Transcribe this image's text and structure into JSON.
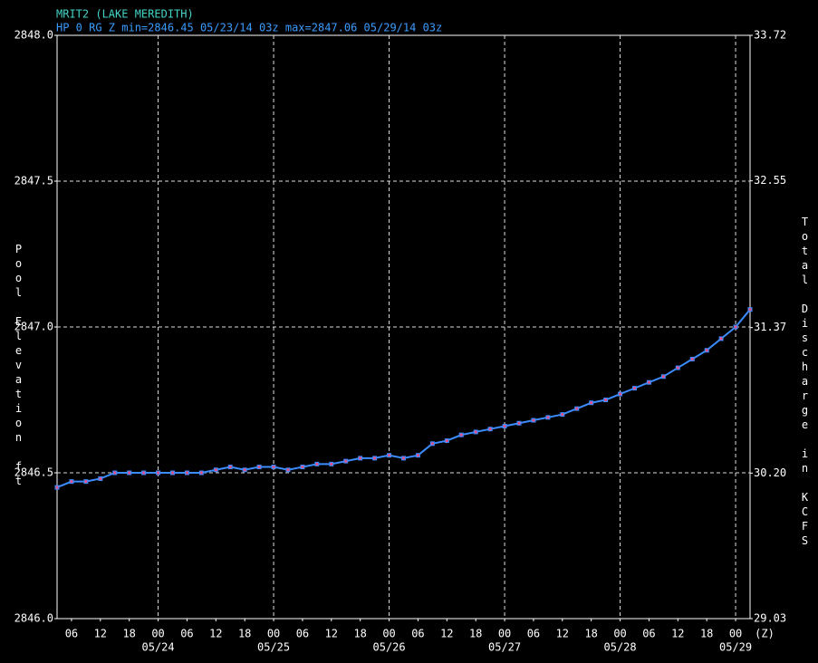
{
  "chart_data": {
    "type": "line",
    "title": "MRIT2 (LAKE MEREDITH)",
    "subtitle": "HP 0 RG Z min=2846.45 05/23/14 03z max=2847.06 05/29/14 03z",
    "y_label": "Pool Elevation ft",
    "y2_label": "Total Discharge in KCFS",
    "x_unit": "(Z)",
    "x": [
      "05/23 03",
      "05/23 06",
      "05/23 09",
      "05/23 12",
      "05/23 15",
      "05/23 18",
      "05/23 21",
      "05/24 00",
      "05/24 03",
      "05/24 06",
      "05/24 09",
      "05/24 12",
      "05/24 15",
      "05/24 18",
      "05/24 21",
      "05/25 00",
      "05/25 03",
      "05/25 06",
      "05/25 09",
      "05/25 12",
      "05/25 15",
      "05/25 18",
      "05/25 21",
      "05/26 00",
      "05/26 03",
      "05/26 06",
      "05/26 09",
      "05/26 12",
      "05/26 15",
      "05/26 18",
      "05/26 21",
      "05/27 00",
      "05/27 03",
      "05/27 06",
      "05/27 09",
      "05/27 12",
      "05/27 15",
      "05/27 18",
      "05/27 21",
      "05/28 00",
      "05/28 03",
      "05/28 06",
      "05/28 09",
      "05/28 12",
      "05/28 15",
      "05/28 18",
      "05/28 21",
      "05/29 00",
      "05/29 03"
    ],
    "series": [
      {
        "color": "#3b8cff",
        "marker_color": "#e0508a",
        "values": [
          2846.45,
          2846.47,
          2846.47,
          2846.48,
          2846.5,
          2846.5,
          2846.5,
          2846.5,
          2846.5,
          2846.5,
          2846.5,
          2846.51,
          2846.52,
          2846.51,
          2846.52,
          2846.52,
          2846.51,
          2846.52,
          2846.53,
          2846.53,
          2846.54,
          2846.55,
          2846.55,
          2846.56,
          2846.55,
          2846.56,
          2846.6,
          2846.61,
          2846.63,
          2846.64,
          2846.65,
          2846.66,
          2846.67,
          2846.68,
          2846.69,
          2846.7,
          2846.72,
          2846.74,
          2846.75,
          2846.77,
          2846.79,
          2846.81,
          2846.83,
          2846.86,
          2846.89,
          2846.92,
          2846.96,
          2847.0,
          2847.06
        ]
      }
    ],
    "xlim": [
      "05/23 03",
      "05/29 03"
    ],
    "xticks": [
      {
        "value": "05/23 06",
        "label": "06"
      },
      {
        "value": "05/23 12",
        "label": "12"
      },
      {
        "value": "05/23 18",
        "label": "18"
      },
      {
        "value": "05/24 00",
        "label": "00"
      },
      {
        "value": "05/24 06",
        "label": "06"
      },
      {
        "value": "05/24 12",
        "label": "12"
      },
      {
        "value": "05/24 18",
        "label": "18"
      },
      {
        "value": "05/25 00",
        "label": "00"
      },
      {
        "value": "05/25 06",
        "label": "06"
      },
      {
        "value": "05/25 12",
        "label": "12"
      },
      {
        "value": "05/25 18",
        "label": "18"
      },
      {
        "value": "05/26 00",
        "label": "00"
      },
      {
        "value": "05/26 06",
        "label": "06"
      },
      {
        "value": "05/26 12",
        "label": "12"
      },
      {
        "value": "05/26 18",
        "label": "18"
      },
      {
        "value": "05/27 00",
        "label": "00"
      },
      {
        "value": "05/27 06",
        "label": "06"
      },
      {
        "value": "05/27 12",
        "label": "12"
      },
      {
        "value": "05/27 18",
        "label": "18"
      },
      {
        "value": "05/28 00",
        "label": "00"
      },
      {
        "value": "05/28 06",
        "label": "06"
      },
      {
        "value": "05/28 12",
        "label": "12"
      },
      {
        "value": "05/28 18",
        "label": "18"
      },
      {
        "value": "05/29 00",
        "label": "00"
      }
    ],
    "xdate_ticks": [
      {
        "value": "05/24 00",
        "label": "05/24"
      },
      {
        "value": "05/25 00",
        "label": "05/25"
      },
      {
        "value": "05/26 00",
        "label": "05/26"
      },
      {
        "value": "05/27 00",
        "label": "05/27"
      },
      {
        "value": "05/28 00",
        "label": "05/28"
      },
      {
        "value": "05/29 00",
        "label": "05/29"
      }
    ],
    "ylim": [
      2846.0,
      2848.0
    ],
    "yticks": [
      {
        "value": 2846.0,
        "label": "2846.0"
      },
      {
        "value": 2846.5,
        "label": "2846.5"
      },
      {
        "value": 2847.0,
        "label": "2847.0"
      },
      {
        "value": 2847.5,
        "label": "2847.5"
      },
      {
        "value": 2848.0,
        "label": "2848.0"
      }
    ],
    "y2lim": [
      29.03,
      33.72
    ],
    "y2ticks": [
      29.03,
      {
        "value": 30.2,
        "label": "30.20"
      },
      31.37,
      32.55,
      33.72
    ],
    "grid": true
  }
}
